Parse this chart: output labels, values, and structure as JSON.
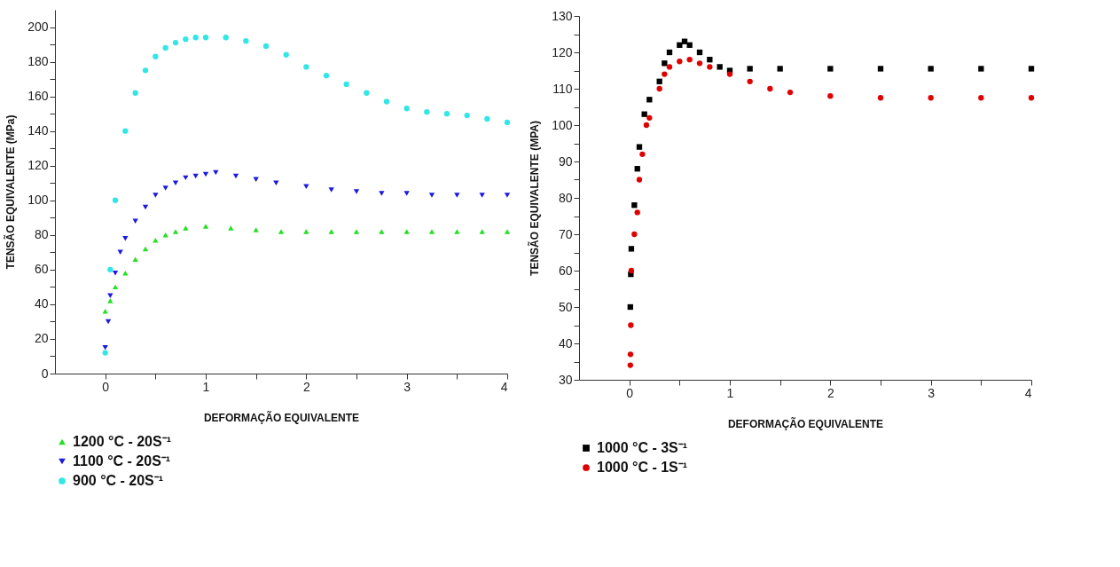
{
  "chart_data": [
    {
      "type": "scatter",
      "xlabel": "DEFORMAÇÃO EQUIVALENTE",
      "ylabel": "TENSÃO EQUIVALENTE (MPa)",
      "xlim": [
        -0.5,
        4
      ],
      "ylim": [
        0,
        210
      ],
      "xticks": [
        0,
        {
          "value": 0.5,
          "label": null
        },
        1,
        {
          "value": 1.5,
          "label": null
        },
        2,
        {
          "value": 2.5,
          "label": null
        },
        3,
        {
          "value": 3.5,
          "label": null
        },
        4
      ],
      "yticks": [
        0,
        {
          "value": 10,
          "label": null
        },
        20,
        {
          "value": 30,
          "label": null
        },
        40,
        {
          "value": 50,
          "label": null
        },
        60,
        {
          "value": 70,
          "label": null
        },
        80,
        {
          "value": 90,
          "label": null
        },
        100,
        {
          "value": 110,
          "label": null
        },
        120,
        {
          "value": 130,
          "label": null
        },
        140,
        {
          "value": 150,
          "label": null
        },
        160,
        {
          "value": 170,
          "label": null
        },
        180,
        {
          "value": 190,
          "label": null
        },
        200
      ],
      "grid": false,
      "legend": "bottom",
      "series": [
        {
          "name": "1200 °C - 20S⁻¹",
          "color": "#22e022",
          "marker": "triangle",
          "x": [
            0,
            0.05,
            0.1,
            0.2,
            0.3,
            0.4,
            0.5,
            0.6,
            0.7,
            0.8,
            1.0,
            1.25,
            1.5,
            1.75,
            2.0,
            2.25,
            2.5,
            2.75,
            3.0,
            3.25,
            3.5,
            3.75,
            4.0
          ],
          "values": [
            36,
            42,
            50,
            58,
            66,
            72,
            77,
            80,
            82,
            84,
            85,
            84,
            83,
            82,
            82,
            82,
            82,
            82,
            82,
            82,
            82,
            82,
            82
          ]
        },
        {
          "name": "1100 °C - 20S⁻¹",
          "color": "#1a1ae0",
          "marker": "triangle-down",
          "x": [
            0,
            0.03,
            0.05,
            0.1,
            0.15,
            0.2,
            0.3,
            0.4,
            0.5,
            0.6,
            0.7,
            0.8,
            0.9,
            1.0,
            1.1,
            1.3,
            1.5,
            1.7,
            2.0,
            2.25,
            2.5,
            2.75,
            3.0,
            3.25,
            3.5,
            3.75,
            4.0
          ],
          "values": [
            15,
            30,
            45,
            58,
            70,
            78,
            88,
            96,
            103,
            107,
            110,
            113,
            114,
            115,
            116,
            114,
            112,
            110,
            108,
            106,
            105,
            104,
            104,
            103,
            103,
            103,
            103
          ]
        },
        {
          "name": "900 °C - 20S⁻¹",
          "color": "#33e6e6",
          "marker": "circle",
          "x": [
            0,
            0.05,
            0.1,
            0.2,
            0.3,
            0.4,
            0.5,
            0.6,
            0.7,
            0.8,
            0.9,
            1.0,
            1.2,
            1.4,
            1.6,
            1.8,
            2.0,
            2.2,
            2.4,
            2.6,
            2.8,
            3.0,
            3.2,
            3.4,
            3.6,
            3.8,
            4.0
          ],
          "values": [
            12,
            60,
            100,
            140,
            162,
            175,
            183,
            188,
            191,
            193,
            194,
            194,
            194,
            192,
            189,
            184,
            177,
            172,
            167,
            162,
            157,
            153,
            151,
            150,
            149,
            147,
            145
          ]
        }
      ]
    },
    {
      "type": "scatter",
      "xlabel": "DEFORMAÇÃO EQUIVALENTE",
      "ylabel": "TENSÃO EQUIVALENTE (MPA)",
      "xlim": [
        -0.5,
        4
      ],
      "ylim": [
        30,
        130
      ],
      "xticks": [
        0,
        {
          "value": 0.5,
          "label": null
        },
        1,
        {
          "value": 1.5,
          "label": null
        },
        2,
        {
          "value": 2.5,
          "label": null
        },
        3,
        {
          "value": 3.5,
          "label": null
        },
        4
      ],
      "yticks": [
        30,
        {
          "value": 35,
          "label": null
        },
        40,
        {
          "value": 45,
          "label": null
        },
        50,
        {
          "value": 55,
          "label": null
        },
        60,
        {
          "value": 65,
          "label": null
        },
        70,
        {
          "value": 75,
          "label": null
        },
        80,
        {
          "value": 85,
          "label": null
        },
        90,
        {
          "value": 95,
          "label": null
        },
        100,
        {
          "value": 105,
          "label": null
        },
        110,
        {
          "value": 115,
          "label": null
        },
        120,
        {
          "value": 125,
          "label": null
        },
        130
      ],
      "grid": false,
      "legend": "bottom",
      "series": [
        {
          "name": "1000 °C  -  3S⁻¹",
          "color": "#000000",
          "marker": "square",
          "x": [
            0.01,
            0.015,
            0.02,
            0.05,
            0.08,
            0.1,
            0.15,
            0.2,
            0.3,
            0.35,
            0.4,
            0.5,
            0.55,
            0.6,
            0.7,
            0.8,
            0.9,
            1.0,
            1.2,
            1.5,
            2.0,
            2.5,
            3.0,
            3.5,
            4.0
          ],
          "values": [
            50,
            59,
            66,
            78,
            88,
            94,
            103,
            107,
            112,
            117,
            120,
            122,
            123,
            122,
            120,
            118,
            116,
            115,
            115.5,
            115.5,
            115.5,
            115.5,
            115.5,
            115.5,
            115.5
          ]
        },
        {
          "name": "1000 °C  -  1S⁻¹",
          "color": "#e00000",
          "marker": "circle",
          "x": [
            0.01,
            0.012,
            0.015,
            0.02,
            0.05,
            0.08,
            0.1,
            0.13,
            0.17,
            0.2,
            0.3,
            0.35,
            0.4,
            0.5,
            0.6,
            0.7,
            0.8,
            1.0,
            1.2,
            1.4,
            1.6,
            2.0,
            2.5,
            3.0,
            3.5,
            4.0
          ],
          "values": [
            34,
            37,
            45,
            60,
            70,
            76,
            85,
            92,
            100,
            102,
            110,
            114,
            116,
            117.5,
            118,
            117,
            116,
            114,
            112,
            110,
            109,
            108,
            107.5,
            107.5,
            107.5,
            107.5
          ]
        }
      ]
    }
  ]
}
